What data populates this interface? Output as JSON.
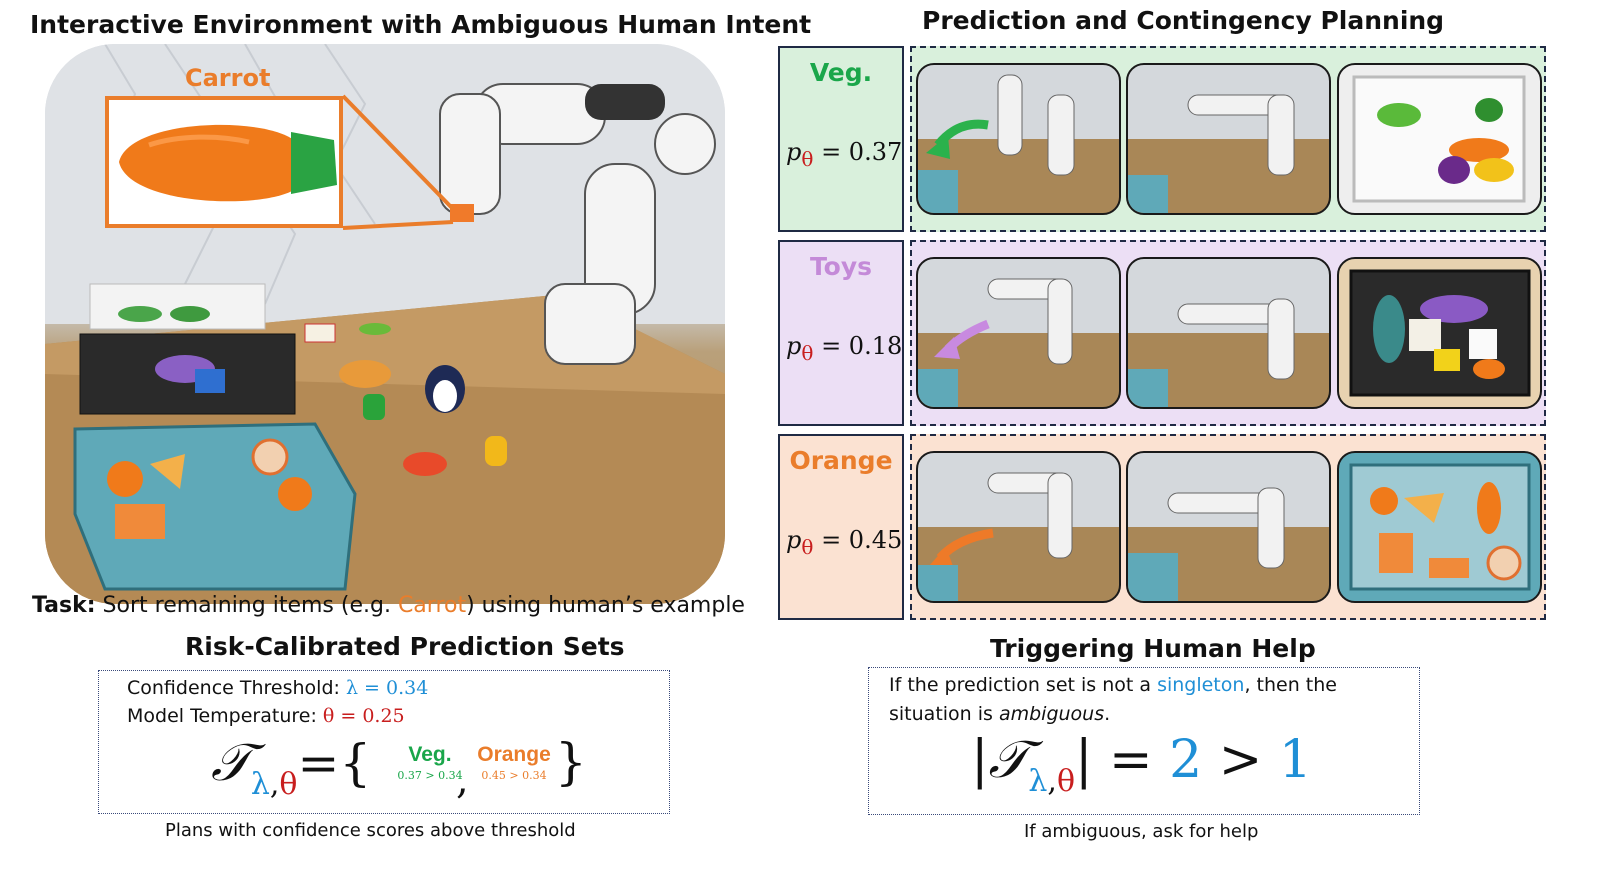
{
  "left": {
    "title": "Interactive Environment with Ambiguous Human Intent",
    "callout_label": "Carrot",
    "task_label": "Task:",
    "task_text_before": " Sort remaining items (e.g. ",
    "task_highlight": "Carrot",
    "task_text_after": ") using human’s example"
  },
  "right": {
    "title": "Prediction and Contingency Planning",
    "rows": [
      {
        "label": "Veg.",
        "prob": "= 0.37",
        "label_color": "#1aa64a",
        "bg": "#d9f0dc",
        "arrow_color": "#2bb24c"
      },
      {
        "label": "Toys",
        "prob": "= 0.18",
        "label_color": "#c48ad8",
        "bg": "#ecdff5",
        "arrow_color": "#c88ae0"
      },
      {
        "label": "Orange",
        "prob": "= 0.45",
        "label_color": "#ea7d2b",
        "bg": "#fbe2d2",
        "arrow_color": "#ee7a28"
      }
    ],
    "prob_symbol": "p",
    "prob_subscript": "θ"
  },
  "risk": {
    "title": "Risk-Calibrated Prediction Sets",
    "threshold_label": "Confidence Threshold: ",
    "threshold_value": "λ = 0.34",
    "temperature_label": "Model Temperature: ",
    "temperature_value": "θ = 0.25",
    "formula_T": "𝒯",
    "sub_lambda": "λ",
    "sub_theta": "θ",
    "equals_brace": "={",
    "item1": "Veg.",
    "item1_cond": "0.37 > 0.34",
    "item2": "Orange",
    "item2_cond": "0.45 > 0.34",
    "close_brace": "}",
    "caption": "Plans with confidence scores above threshold"
  },
  "help": {
    "title": "Triggering Human Help",
    "line1_before": "If the prediction set is not a ",
    "line1_highlight": "singleton",
    "line1_after": ", then the",
    "line2_before": "situation is ",
    "line2_italic": "ambiguous",
    "line2_after": ".",
    "formula_T": "𝒯",
    "num_left": "2",
    "gt": ">",
    "num_right": "1",
    "caption": "If ambiguous, ask for help"
  },
  "colors": {
    "blue": "#1f8fd6",
    "red": "#c81e1e",
    "green": "#1aa64a",
    "orange": "#ea7d2b",
    "frame": "#1f2a44"
  }
}
